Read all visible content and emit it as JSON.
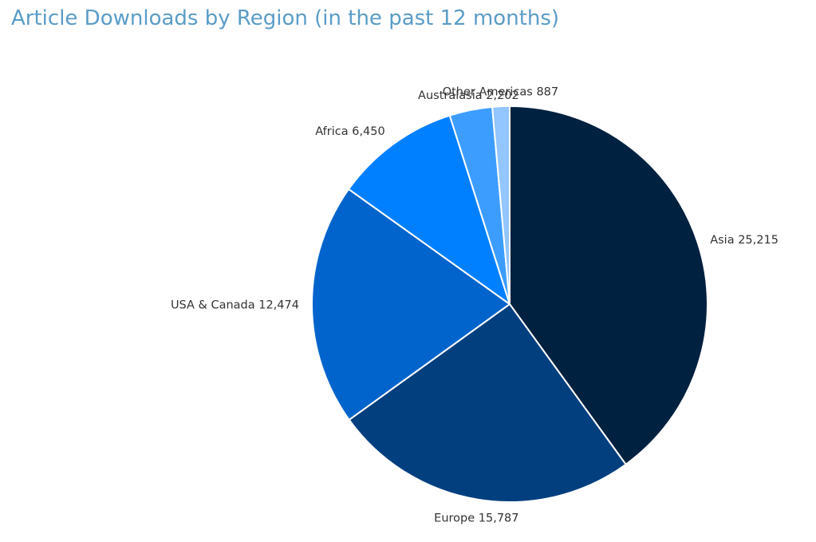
{
  "chart_data": {
    "type": "pie",
    "title": "Article Downloads by Region (in the past 12 months)",
    "slices": [
      {
        "label": "Asia",
        "value": 25215,
        "display": "25,215",
        "color": "#00213f"
      },
      {
        "label": "Europe",
        "value": 15787,
        "display": "15,787",
        "color": "#013f7f"
      },
      {
        "label": "USA & Canada",
        "value": 12474,
        "display": "12,474",
        "color": "#0064cc"
      },
      {
        "label": "Africa",
        "value": 6450,
        "display": "6,450",
        "color": "#0080ff"
      },
      {
        "label": "Australasia",
        "value": 2202,
        "display": "2,202",
        "color": "#3d9dff"
      },
      {
        "label": "Other Americas",
        "value": 887,
        "display": "887",
        "color": "#93c5ff"
      }
    ],
    "start_angle": "12 o'clock",
    "direction": "clockwise",
    "legend": "none"
  }
}
